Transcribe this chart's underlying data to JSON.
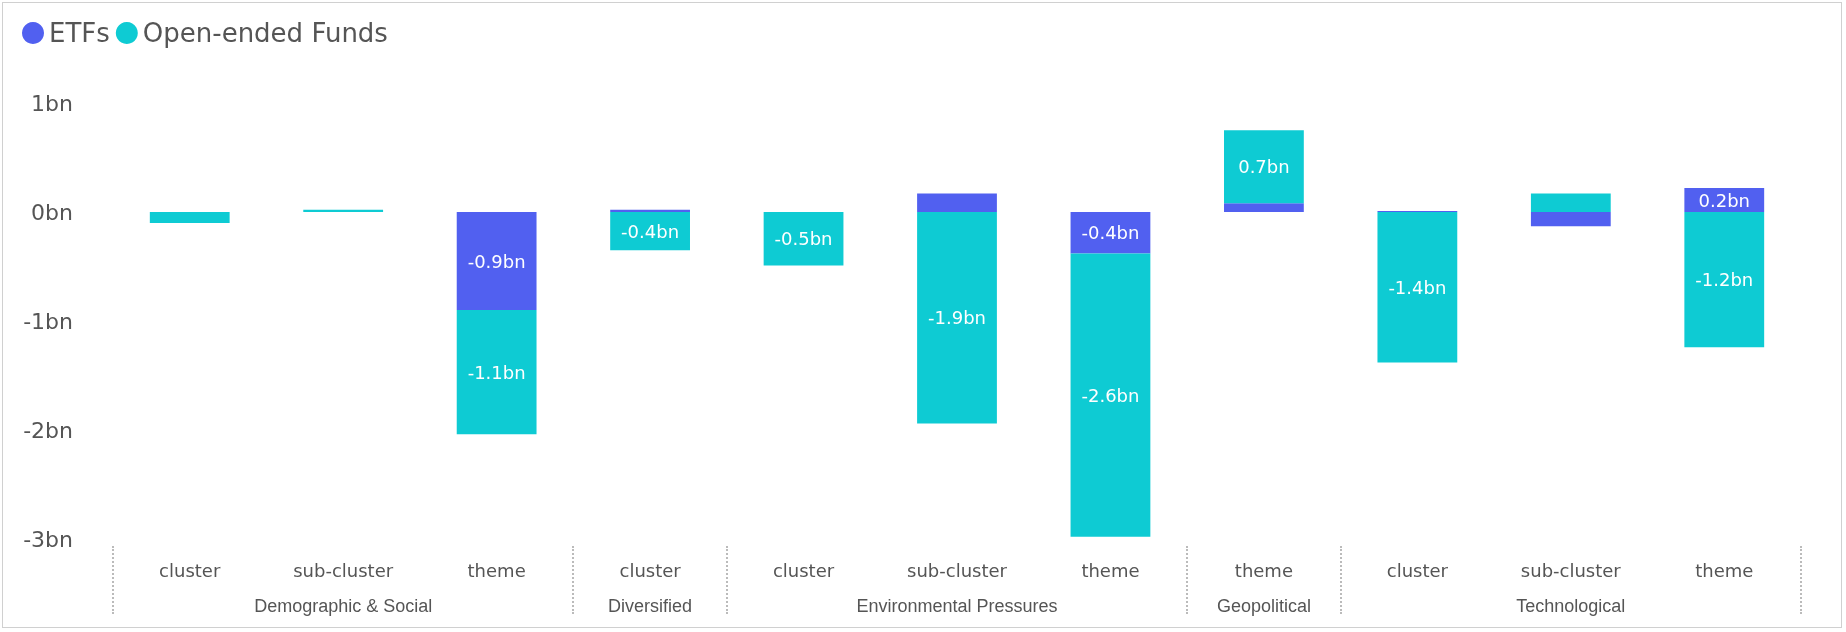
{
  "chart_data": {
    "type": "bar",
    "stacked": true,
    "legend": "top left",
    "categories": [
      "cluster",
      "sub-cluster",
      "theme",
      "cluster",
      "cluster",
      "sub-cluster",
      "theme",
      "theme",
      "cluster",
      "sub-cluster",
      "theme"
    ],
    "series": [
      {
        "name": "ETFs",
        "color": "#5160f0",
        "values": [
          0,
          0,
          -0.9,
          0.02,
          0,
          0.17,
          -0.38,
          0.08,
          0.01,
          -0.13,
          0.22
        ],
        "value_labels": [
          null,
          null,
          "-0.9bn",
          null,
          null,
          null,
          "-0.4bn",
          null,
          null,
          null,
          "0.2bn"
        ]
      },
      {
        "name": "Open-ended Funds",
        "color": "#0ecbd3",
        "values": [
          -0.1,
          0.02,
          -1.14,
          -0.35,
          -0.49,
          -1.94,
          -2.6,
          0.67,
          -1.38,
          0.17,
          -1.24
        ],
        "value_labels": [
          null,
          null,
          "-1.1bn",
          "-0.4bn",
          "-0.5bn",
          "-1.9bn",
          "-2.6bn",
          "0.7bn",
          "-1.4bn",
          null,
          "-1.2bn"
        ]
      }
    ],
    "ylim": [
      -3,
      1
    ],
    "yticks": [
      {
        "value": -3,
        "label": "-3bn"
      },
      {
        "value": -2,
        "label": "-2bn"
      },
      {
        "value": -1,
        "label": "-1bn"
      },
      {
        "value": 0,
        "label": "0bn"
      },
      {
        "value": 1,
        "label": "1bn"
      }
    ],
    "grid": false,
    "annotations": [
      "Demographic & Social",
      "Diversified",
      "Environmental Pressures",
      "Geopolitical",
      "Technological"
    ]
  }
}
